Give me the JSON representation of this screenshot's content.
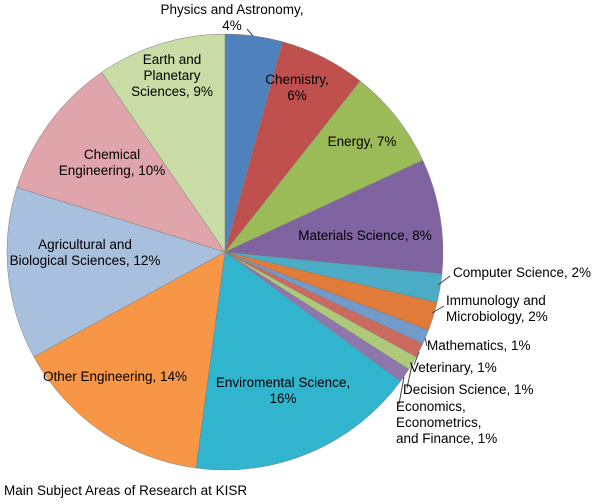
{
  "caption": "Main Subject Areas of Research at KISR",
  "chart_data": {
    "type": "pie",
    "title": "Main Subject Areas of Research at KISR",
    "legend_position": "none",
    "units": "percent",
    "start_angle": "top",
    "direction": "clockwise",
    "slices": [
      {
        "label": "Physics and Astronomy",
        "value": 4,
        "color": "#4F81BD",
        "label_lines": [
          "Physics and Astronomy,",
          "4%"
        ],
        "label_placement": "outside"
      },
      {
        "label": "Chemistry",
        "value": 6,
        "color": "#C0504D",
        "label_lines": [
          "Chemistry,",
          "6%"
        ],
        "label_placement": "inside"
      },
      {
        "label": "Energy",
        "value": 7,
        "color": "#9BBB59",
        "label_lines": [
          "Energy, 7%"
        ],
        "label_placement": "inside"
      },
      {
        "label": "Materials Science",
        "value": 8,
        "color": "#8064A2",
        "label_lines": [
          "Materials Science, 8%"
        ],
        "label_placement": "inside"
      },
      {
        "label": "Computer Science",
        "value": 2,
        "color": "#4BACC6",
        "label_lines": [
          "Computer Science, 2%"
        ],
        "label_placement": "outside"
      },
      {
        "label": "Immunology and Microbiology",
        "value": 2,
        "color": "#E07B39",
        "label_lines": [
          "Immunology and",
          "Microbiology, 2%"
        ],
        "label_placement": "outside"
      },
      {
        "label": "Mathematics",
        "value": 1,
        "color": "#729ACA",
        "label_lines": [
          "Mathematics, 1%"
        ],
        "label_placement": "outside"
      },
      {
        "label": "Veterinary",
        "value": 1,
        "color": "#CD6A5F",
        "label_lines": [
          "Veterinary, 1%"
        ],
        "label_placement": "outside"
      },
      {
        "label": "Decision Science",
        "value": 1,
        "color": "#AFC97A",
        "label_lines": [
          "Decision Science, 1%"
        ],
        "label_placement": "outside"
      },
      {
        "label": "Economics, Econometrics, and Finance",
        "value": 1,
        "color": "#8E77AD",
        "label_lines": [
          "Economics,",
          "Econometrics,",
          "and Finance, 1%"
        ],
        "label_placement": "outside"
      },
      {
        "label": "Enviromental Science",
        "value": 16,
        "color": "#31B5CE",
        "label_lines": [
          "Enviromental Science,",
          "16%"
        ],
        "label_placement": "inside"
      },
      {
        "label": "Other Engineering",
        "value": 14,
        "color": "#F79646",
        "label_lines": [
          "Other Engineering, 14%"
        ],
        "label_placement": "inside"
      },
      {
        "label": "Agricultural and Biological Sciences",
        "value": 12,
        "color": "#A8BFDD",
        "label_lines": [
          "Agricultural and",
          "Biological Sciences, 12%"
        ],
        "label_placement": "inside"
      },
      {
        "label": "Chemical Engineering",
        "value": 10,
        "color": "#DFA5AB",
        "label_lines": [
          "Chemical",
          "Engineering, 10%"
        ],
        "label_placement": "inside"
      },
      {
        "label": "Earth and Planetary Sciences",
        "value": 9,
        "color": "#C9DCA5",
        "label_lines": [
          "Earth and",
          "Planetary",
          "Sciences, 9%"
        ],
        "label_placement": "inside"
      }
    ]
  }
}
